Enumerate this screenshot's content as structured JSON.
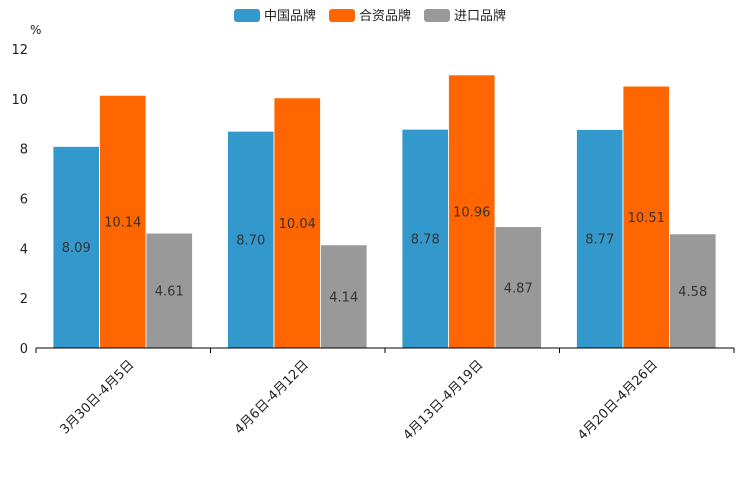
{
  "chart_data": {
    "type": "bar",
    "unit_label": "%",
    "categories": [
      "3月30日-4月5日",
      "4月6日-4月12日",
      "4月13日-4月19日",
      "4月20日-4月26日"
    ],
    "series": [
      {
        "name": "中国品牌",
        "color": "#3399cc",
        "values": [
          8.09,
          8.7,
          8.78,
          8.77
        ],
        "labels": [
          "8.09",
          "8.70",
          "8.78",
          "8.77"
        ]
      },
      {
        "name": "合资品牌",
        "color": "#ff6600",
        "values": [
          10.14,
          10.04,
          10.96,
          10.51
        ],
        "labels": [
          "10.14",
          "10.04",
          "10.96",
          "10.51"
        ]
      },
      {
        "name": "进口品牌",
        "color": "#999999",
        "values": [
          4.61,
          4.14,
          4.87,
          4.58
        ],
        "labels": [
          "4.61",
          "4.14",
          "4.87",
          "4.58"
        ]
      }
    ],
    "ylim": [
      0,
      12
    ],
    "yticks": [
      "0",
      "2",
      "4",
      "6",
      "8",
      "10",
      "12"
    ],
    "legend_position": "top-center",
    "grid": false
  }
}
